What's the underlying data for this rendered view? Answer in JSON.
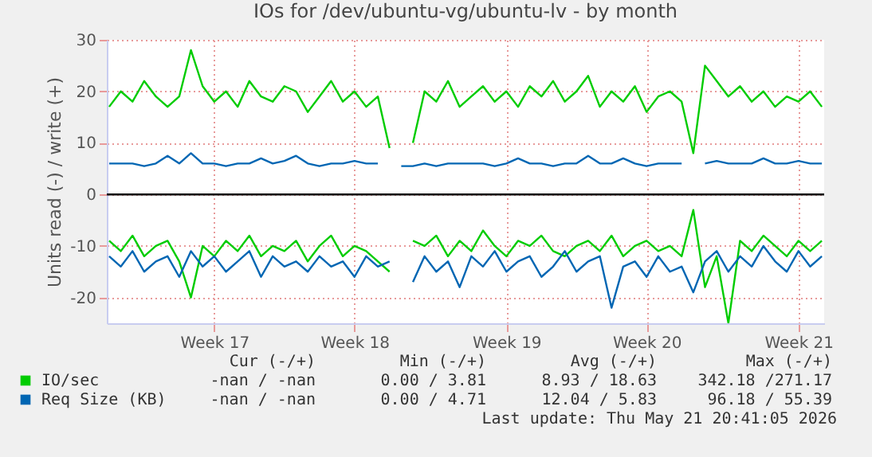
{
  "chart_data": {
    "type": "line",
    "title": "IOs for /dev/ubuntu-vg/ubuntu-lv - by month",
    "ylabel": "Units read (-) / write (+)",
    "categories": [
      null,
      null,
      null,
      null,
      null,
      null,
      null,
      null,
      null,
      "Week 17",
      null,
      null,
      null,
      null,
      null,
      null,
      null,
      null,
      null,
      null,
      null,
      "Week 18",
      null,
      null,
      null,
      null,
      null,
      null,
      null,
      null,
      null,
      null,
      null,
      null,
      "Week 19",
      null,
      null,
      null,
      null,
      null,
      null,
      null,
      null,
      null,
      null,
      null,
      "Week 20",
      null,
      null,
      null,
      null,
      null,
      null,
      null,
      null,
      null,
      null,
      null,
      null,
      "Week 21",
      null,
      null
    ],
    "series": [
      {
        "name": "IO/sec",
        "color": "#00cc00",
        "values": [
          17,
          20,
          18,
          22,
          19,
          17,
          19,
          28,
          21,
          18,
          20,
          17,
          22,
          19,
          18,
          21,
          20,
          16,
          19,
          22,
          18,
          20,
          17,
          19,
          9,
          null,
          10,
          20,
          18,
          22,
          17,
          19,
          21,
          18,
          20,
          17,
          21,
          19,
          22,
          18,
          20,
          23,
          17,
          20,
          18,
          21,
          16,
          19,
          20,
          18,
          8,
          25,
          22,
          19,
          21,
          18,
          20,
          17,
          19,
          18,
          20,
          17
        ]
      },
      {
        "name": "Req Size (KB)",
        "color": "#0066b3",
        "values": [
          6,
          6,
          6,
          5.5,
          6,
          7.5,
          6,
          8,
          6,
          6,
          5.5,
          6,
          6,
          7,
          6,
          6.5,
          7.5,
          6,
          5.5,
          6,
          6,
          6.5,
          6,
          6,
          null,
          5.5,
          5.5,
          6,
          5.5,
          6,
          6,
          6,
          6,
          5.5,
          6,
          7,
          6,
          6,
          5.5,
          6,
          6,
          7.5,
          6,
          6,
          7,
          6,
          5.5,
          6,
          6,
          6,
          null,
          6,
          6.5,
          6,
          6,
          6,
          7,
          6,
          6,
          6.5,
          6,
          6
        ]
      },
      {
        "color": "#00cc00",
        "values": [
          -9,
          -11,
          -8,
          -12,
          -10,
          -9,
          -13,
          -20,
          -10,
          -12,
          -9,
          -11,
          -8,
          -12,
          -10,
          -11,
          -9,
          -13,
          -10,
          -8,
          -12,
          -10,
          -11,
          -13,
          -15,
          null,
          -9,
          -10,
          -8,
          -12,
          -9,
          -11,
          -7,
          -10,
          -12,
          -9,
          -10,
          -8,
          -11,
          -12,
          -10,
          -9,
          -11,
          -8,
          -12,
          -10,
          -9,
          -11,
          -10,
          -12,
          -3,
          -18,
          -12,
          -25,
          -9,
          -11,
          -8,
          -10,
          -12,
          -9,
          -11,
          -9
        ]
      },
      {
        "color": "#0066b3",
        "values": [
          -12,
          -14,
          -11,
          -15,
          -13,
          -12,
          -16,
          -11,
          -14,
          -12,
          -15,
          -13,
          -11,
          -16,
          -12,
          -14,
          -13,
          -15,
          -12,
          -14,
          -13,
          -16,
          -12,
          -14,
          -13,
          null,
          -17,
          -12,
          -15,
          -13,
          -18,
          -12,
          -14,
          -11,
          -15,
          -13,
          -12,
          -16,
          -14,
          -11,
          -15,
          -13,
          -12,
          -22,
          -14,
          -13,
          -16,
          -12,
          -15,
          -14,
          -19,
          -13,
          -11,
          -15,
          -12,
          -14,
          -10,
          -13,
          -15,
          -11,
          -14,
          -12
        ]
      }
    ],
    "ylim": [
      -25,
      30
    ],
    "yticks": [
      -20,
      -10,
      0,
      10,
      20,
      30
    ],
    "ref_lines": [
      {
        "axis": "y",
        "value": 0,
        "color": "#000000"
      }
    ],
    "grid": true,
    "legend": "bottom",
    "marker": "none",
    "line_style": "solid",
    "annotations": [
      "Cur (-/+)",
      "Min (-/+)",
      "Avg (-/+)",
      "Max (-/+)",
      "-nan /  -nan",
      "0.00 /  3.81",
      "8.93 / 18.63",
      "342.18 /271.17",
      "-nan /  -nan",
      "0.00 /  4.71",
      "12.04 /  5.83",
      "96.18 / 55.39",
      "Last update: Thu May 21 20:41:05 2026"
    ]
  }
}
